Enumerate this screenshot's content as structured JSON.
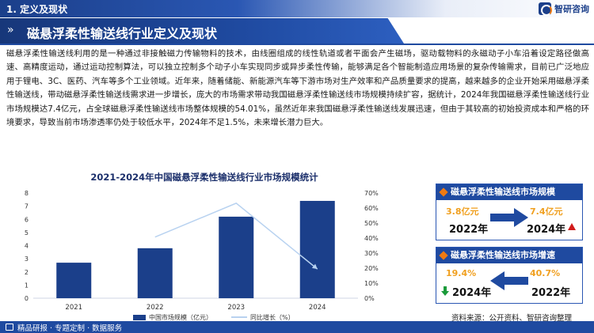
{
  "header": {
    "section_title": "1. 定义及现状",
    "brand": "智研咨询"
  },
  "banner": {
    "arrows": "»",
    "title": "磁悬浮柔性输送线行业定义及现状"
  },
  "body_text": "磁悬浮柔性输送线利用的是一种通过非接触磁力传输物料的技术，由线圈组成的线性轨道或者平面会产生磁场，驱动载物料的永磁动子小车沿着设定路径做高速、高精度运动，通过运动控制算法，可以独立控制多个动子小车实现同步或异步柔性传输，能够满足各个智能制造应用场景的复杂传输需求，目前已广泛地应用于锂电、3C、医药、汽车等多个工业领域。近年来，随着储能、新能源汽车等下游市场对生产效率和产品质量要求的提高，越来越多的企业开始采用磁悬浮柔性输送线，带动磁悬浮柔性输送线需求进一步增长，庞大的市场需求带动我国磁悬浮柔性输送线市场规模持续扩容，据统计，2024年我国磁悬浮柔性输送线行业市场规模达7.4亿元，占全球磁悬浮柔性输送线市场整体规模的54.01%，虽然近年来我国磁悬浮柔性输送线发展迅速，但由于其较高的初始投资成本和严格的环境要求，导致当前市场渗透率仍处于较低水平，2024年不足1.5%，未来增长潜力巨大。",
  "chart_data": {
    "type": "bar",
    "title": "2021-2024年中国磁悬浮柔性输送线行业市场规模统计",
    "categories": [
      "2021",
      "2022",
      "2023",
      "2024"
    ],
    "series": [
      {
        "name": "中国市场规模（亿元）",
        "type": "bar",
        "axis": "left",
        "values": [
          2.7,
          3.8,
          6.2,
          7.4
        ],
        "color": "#1b3f8a"
      },
      {
        "name": "同比增长（%）",
        "type": "line",
        "axis": "right",
        "values": [
          null,
          40.7,
          63.2,
          19.4
        ],
        "color": "#b8d2f0"
      }
    ],
    "y_left": {
      "min": 0,
      "max": 8,
      "ticks": [
        "0",
        "1",
        "2",
        "3",
        "4",
        "5",
        "6",
        "7",
        "8"
      ]
    },
    "y_right": {
      "min": 0,
      "max": 70,
      "ticks": [
        "0%",
        "10%",
        "20%",
        "30%",
        "40%",
        "50%",
        "60%",
        "70%"
      ]
    },
    "legend_position": "bottom",
    "grid": false
  },
  "panel_scale": {
    "title": "磁悬浮柔性输送线市场规模",
    "left_value": "3.8亿元",
    "left_year": "2022年",
    "right_value": "7.4亿元",
    "right_year": "2024年"
  },
  "panel_growth": {
    "title": "磁悬浮柔性输送线市场增速",
    "left_value": "19.4%",
    "left_year": "2024年",
    "right_value": "40.7%",
    "right_year": "2022年"
  },
  "source": "资料来源：公开资料、智研咨询整理",
  "footer": "精品研报 · 专题定制 · 数据服务"
}
